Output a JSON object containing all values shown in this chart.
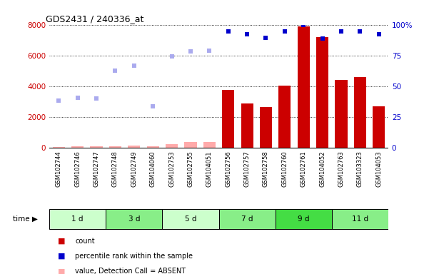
{
  "title": "GDS2431 / 240336_at",
  "samples": [
    "GSM102744",
    "GSM102746",
    "GSM102747",
    "GSM102748",
    "GSM102749",
    "GSM104060",
    "GSM102753",
    "GSM102755",
    "GSM104051",
    "GSM102756",
    "GSM102757",
    "GSM102758",
    "GSM102760",
    "GSM102761",
    "GSM104052",
    "GSM102763",
    "GSM103323",
    "GSM104053"
  ],
  "time_groups": [
    {
      "label": "1 d",
      "start": 0,
      "end": 3,
      "color": "#ccffcc"
    },
    {
      "label": "3 d",
      "start": 3,
      "end": 6,
      "color": "#88ee88"
    },
    {
      "label": "5 d",
      "start": 6,
      "end": 9,
      "color": "#ccffcc"
    },
    {
      "label": "7 d",
      "start": 9,
      "end": 12,
      "color": "#88ee88"
    },
    {
      "label": "9 d",
      "start": 12,
      "end": 15,
      "color": "#44dd44"
    },
    {
      "label": "11 d",
      "start": 15,
      "end": 18,
      "color": "#88ee88"
    }
  ],
  "count_values": [
    80,
    100,
    100,
    130,
    140,
    100,
    230,
    380,
    380,
    3780,
    2900,
    2660,
    4050,
    7900,
    7200,
    4400,
    4600,
    2700
  ],
  "absent_indices": [
    0,
    1,
    2,
    3,
    4,
    5,
    6,
    7,
    8
  ],
  "rank_absent_values": [
    3050,
    3250,
    3200,
    5000,
    5340,
    2700,
    5930,
    6280,
    6310
  ],
  "rank_absent_indices": [
    0,
    1,
    2,
    3,
    4,
    5,
    6,
    7,
    8
  ],
  "percentile_values": [
    7560,
    7380,
    7150,
    7560,
    7980,
    7100,
    7560,
    7560,
    7380
  ],
  "percentile_indices": [
    9,
    10,
    11,
    12,
    13,
    14,
    15,
    16,
    17
  ],
  "ylim_left": [
    0,
    8000
  ],
  "ylim_right": [
    0,
    100
  ],
  "yticks_left": [
    0,
    2000,
    4000,
    6000,
    8000
  ],
  "yticks_right": [
    0,
    25,
    50,
    75,
    100
  ],
  "ytick_labels_right": [
    "0",
    "25",
    "50",
    "75",
    "100%"
  ],
  "bar_color": "#cc0000",
  "absent_bar_color": "#ffaaaa",
  "dot_color": "#0000cc",
  "absent_dot_color": "#aaaaee",
  "bg_color": "#ffffff",
  "tick_label_color_left": "#cc0000",
  "tick_label_color_right": "#0000cc",
  "panel_bg": "#dddddd"
}
